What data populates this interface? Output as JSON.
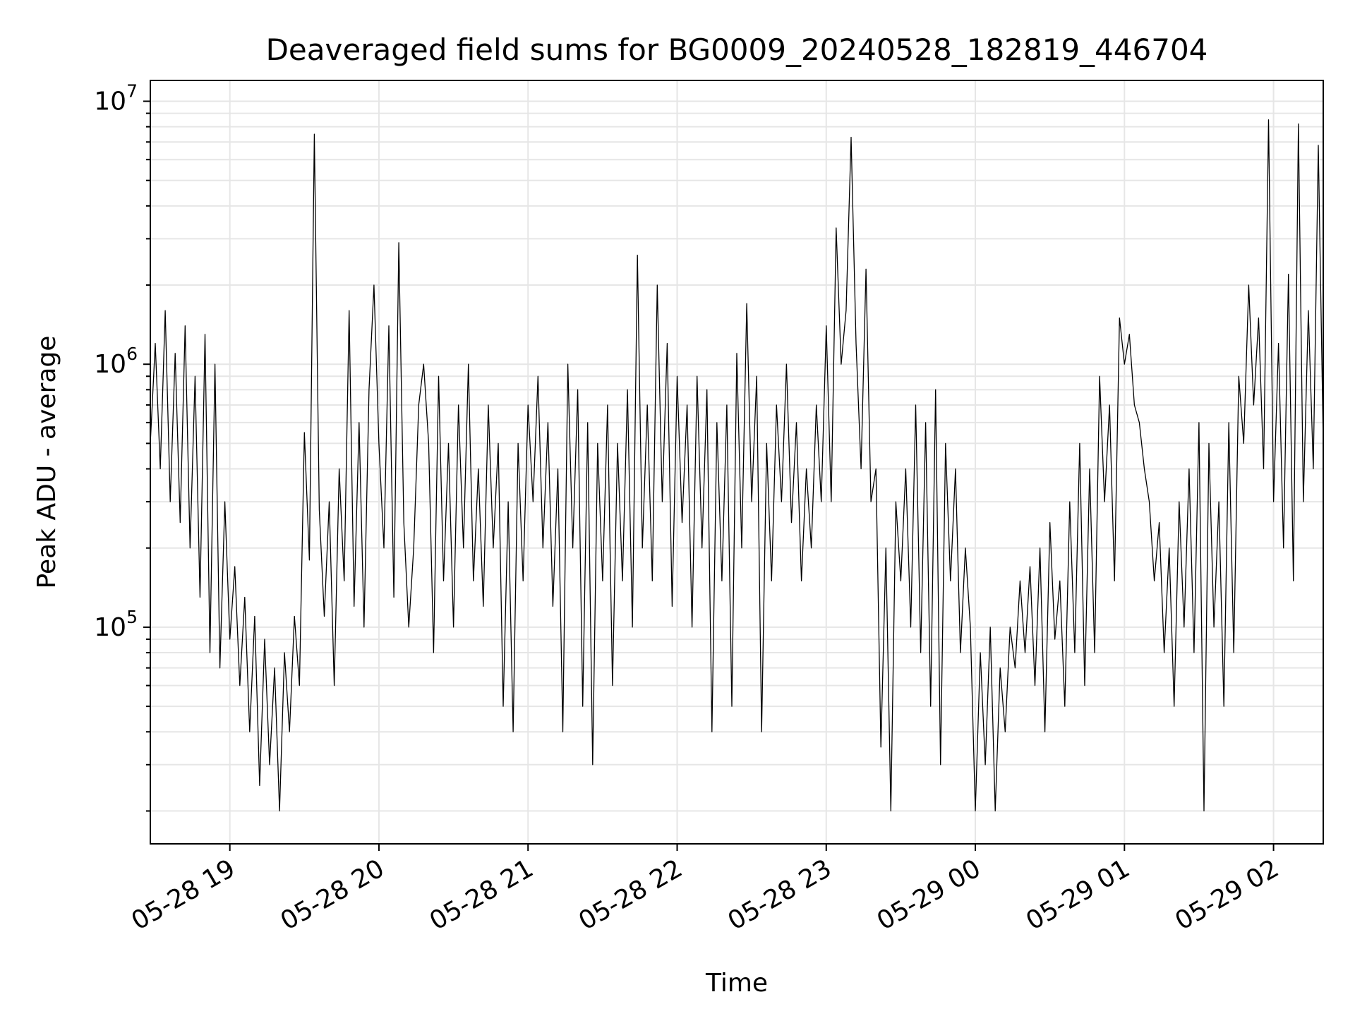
{
  "chart_data": {
    "type": "line",
    "title": "Deaveraged field sums for BG0009_20240528_182819_446704",
    "xlabel": "Time",
    "ylabel": "Peak ADU - average",
    "y_scale": "log",
    "ylim": [
      15000,
      12000000
    ],
    "xlim": [
      "2024-05-28 18:28",
      "2024-05-29 02:20"
    ],
    "x_ticks": [
      "2024-05-28 19:00",
      "2024-05-28 20:00",
      "2024-05-28 21:00",
      "2024-05-28 22:00",
      "2024-05-28 23:00",
      "2024-05-29 00:00",
      "2024-05-29 01:00",
      "2024-05-29 02:00"
    ],
    "x_tick_labels": [
      "05-28 19",
      "05-28 20",
      "05-28 21",
      "05-28 22",
      "05-28 23",
      "05-29 00",
      "05-29 01",
      "05-29 02"
    ],
    "y_ticks": [
      {
        "base": "10",
        "exp": "5",
        "value": 100000
      },
      {
        "base": "10",
        "exp": "6",
        "value": 1000000
      },
      {
        "base": "10",
        "exp": "7",
        "value": 10000000
      }
    ],
    "grid": true,
    "line_color": "#000000",
    "grid_color": "#e6e6e6",
    "series": [
      {
        "x": [
          "2024-05-28 18:28",
          "2024-05-28 18:30",
          "2024-05-28 18:32",
          "2024-05-28 18:34",
          "2024-05-28 18:36",
          "2024-05-28 18:38",
          "2024-05-28 18:40",
          "2024-05-28 18:42",
          "2024-05-28 18:44",
          "2024-05-28 18:46",
          "2024-05-28 18:48",
          "2024-05-28 18:50",
          "2024-05-28 18:52",
          "2024-05-28 18:54",
          "2024-05-28 18:56",
          "2024-05-28 18:58",
          "2024-05-28 19:00",
          "2024-05-28 19:02",
          "2024-05-28 19:04",
          "2024-05-28 19:06",
          "2024-05-28 19:08",
          "2024-05-28 19:10",
          "2024-05-28 19:12",
          "2024-05-28 19:14",
          "2024-05-28 19:16",
          "2024-05-28 19:18",
          "2024-05-28 19:20",
          "2024-05-28 19:22",
          "2024-05-28 19:24",
          "2024-05-28 19:26",
          "2024-05-28 19:28",
          "2024-05-28 19:30",
          "2024-05-28 19:32",
          "2024-05-28 19:34",
          "2024-05-28 19:36",
          "2024-05-28 19:38",
          "2024-05-28 19:40",
          "2024-05-28 19:42",
          "2024-05-28 19:44",
          "2024-05-28 19:46",
          "2024-05-28 19:48",
          "2024-05-28 19:50",
          "2024-05-28 19:52",
          "2024-05-28 19:54",
          "2024-05-28 19:56",
          "2024-05-28 19:58",
          "2024-05-28 20:00",
          "2024-05-28 20:02",
          "2024-05-28 20:04",
          "2024-05-28 20:06",
          "2024-05-28 20:08",
          "2024-05-28 20:10",
          "2024-05-28 20:12",
          "2024-05-28 20:14",
          "2024-05-28 20:16",
          "2024-05-28 20:18",
          "2024-05-28 20:20",
          "2024-05-28 20:22",
          "2024-05-28 20:24",
          "2024-05-28 20:26",
          "2024-05-28 20:28",
          "2024-05-28 20:30",
          "2024-05-28 20:32",
          "2024-05-28 20:34",
          "2024-05-28 20:36",
          "2024-05-28 20:38",
          "2024-05-28 20:40",
          "2024-05-28 20:42",
          "2024-05-28 20:44",
          "2024-05-28 20:46",
          "2024-05-28 20:48",
          "2024-05-28 20:50",
          "2024-05-28 20:52",
          "2024-05-28 20:54",
          "2024-05-28 20:56",
          "2024-05-28 20:58",
          "2024-05-28 21:00",
          "2024-05-28 21:02",
          "2024-05-28 21:04",
          "2024-05-28 21:06",
          "2024-05-28 21:08",
          "2024-05-28 21:10",
          "2024-05-28 21:12",
          "2024-05-28 21:14",
          "2024-05-28 21:16",
          "2024-05-28 21:18",
          "2024-05-28 21:20",
          "2024-05-28 21:22",
          "2024-05-28 21:24",
          "2024-05-28 21:26",
          "2024-05-28 21:28",
          "2024-05-28 21:30",
          "2024-05-28 21:32",
          "2024-05-28 21:34",
          "2024-05-28 21:36",
          "2024-05-28 21:38",
          "2024-05-28 21:40",
          "2024-05-28 21:42",
          "2024-05-28 21:44",
          "2024-05-28 21:46",
          "2024-05-28 21:48",
          "2024-05-28 21:50",
          "2024-05-28 21:52",
          "2024-05-28 21:54",
          "2024-05-28 21:56",
          "2024-05-28 21:58",
          "2024-05-28 22:00",
          "2024-05-28 22:02",
          "2024-05-28 22:04",
          "2024-05-28 22:06",
          "2024-05-28 22:08",
          "2024-05-28 22:10",
          "2024-05-28 22:12",
          "2024-05-28 22:14",
          "2024-05-28 22:16",
          "2024-05-28 22:18",
          "2024-05-28 22:20",
          "2024-05-28 22:22",
          "2024-05-28 22:24",
          "2024-05-28 22:26",
          "2024-05-28 22:28",
          "2024-05-28 22:30",
          "2024-05-28 22:32",
          "2024-05-28 22:34",
          "2024-05-28 22:36",
          "2024-05-28 22:38",
          "2024-05-28 22:40",
          "2024-05-28 22:42",
          "2024-05-28 22:44",
          "2024-05-28 22:46",
          "2024-05-28 22:48",
          "2024-05-28 22:50",
          "2024-05-28 22:52",
          "2024-05-28 22:54",
          "2024-05-28 22:56",
          "2024-05-28 22:58",
          "2024-05-28 23:00",
          "2024-05-28 23:02",
          "2024-05-28 23:04",
          "2024-05-28 23:06",
          "2024-05-28 23:08",
          "2024-05-28 23:10",
          "2024-05-28 23:12",
          "2024-05-28 23:14",
          "2024-05-28 23:16",
          "2024-05-28 23:18",
          "2024-05-28 23:20",
          "2024-05-28 23:22",
          "2024-05-28 23:24",
          "2024-05-28 23:26",
          "2024-05-28 23:28",
          "2024-05-28 23:30",
          "2024-05-28 23:32",
          "2024-05-28 23:34",
          "2024-05-28 23:36",
          "2024-05-28 23:38",
          "2024-05-28 23:40",
          "2024-05-28 23:42",
          "2024-05-28 23:44",
          "2024-05-28 23:46",
          "2024-05-28 23:48",
          "2024-05-28 23:50",
          "2024-05-28 23:52",
          "2024-05-28 23:54",
          "2024-05-28 23:56",
          "2024-05-28 23:58",
          "2024-05-29 00:00",
          "2024-05-29 00:02",
          "2024-05-29 00:04",
          "2024-05-29 00:06",
          "2024-05-29 00:08",
          "2024-05-29 00:10",
          "2024-05-29 00:12",
          "2024-05-29 00:14",
          "2024-05-29 00:16",
          "2024-05-29 00:18",
          "2024-05-29 00:20",
          "2024-05-29 00:22",
          "2024-05-29 00:24",
          "2024-05-29 00:26",
          "2024-05-29 00:28",
          "2024-05-29 00:30",
          "2024-05-29 00:32",
          "2024-05-29 00:34",
          "2024-05-29 00:36",
          "2024-05-29 00:38",
          "2024-05-29 00:40",
          "2024-05-29 00:42",
          "2024-05-29 00:44",
          "2024-05-29 00:46",
          "2024-05-29 00:48",
          "2024-05-29 00:50",
          "2024-05-29 00:52",
          "2024-05-29 00:54",
          "2024-05-29 00:56",
          "2024-05-29 00:58",
          "2024-05-29 01:00",
          "2024-05-29 01:02",
          "2024-05-29 01:04",
          "2024-05-29 01:06",
          "2024-05-29 01:08",
          "2024-05-29 01:10",
          "2024-05-29 01:12",
          "2024-05-29 01:14",
          "2024-05-29 01:16",
          "2024-05-29 01:18",
          "2024-05-29 01:20",
          "2024-05-29 01:22",
          "2024-05-29 01:24",
          "2024-05-29 01:26",
          "2024-05-29 01:28",
          "2024-05-29 01:30",
          "2024-05-29 01:32",
          "2024-05-29 01:34",
          "2024-05-29 01:36",
          "2024-05-29 01:38",
          "2024-05-29 01:40",
          "2024-05-29 01:42",
          "2024-05-29 01:44",
          "2024-05-29 01:46",
          "2024-05-29 01:48",
          "2024-05-29 01:50",
          "2024-05-29 01:52",
          "2024-05-29 01:54",
          "2024-05-29 01:56",
          "2024-05-29 01:58",
          "2024-05-29 02:00",
          "2024-05-29 02:02",
          "2024-05-29 02:04",
          "2024-05-29 02:06",
          "2024-05-29 02:08",
          "2024-05-29 02:10",
          "2024-05-29 02:12",
          "2024-05-29 02:14",
          "2024-05-29 02:16",
          "2024-05-29 02:18",
          "2024-05-29 02:20"
        ],
        "y": [
          500000,
          1200000,
          400000,
          1600000,
          300000,
          1100000,
          250000,
          1400000,
          200000,
          900000,
          130000,
          1300000,
          80000,
          1000000,
          70000,
          300000,
          90000,
          170000,
          60000,
          130000,
          40000,
          110000,
          25000,
          90000,
          30000,
          70000,
          20000,
          80000,
          40000,
          110000,
          60000,
          550000,
          180000,
          7500000,
          280000,
          110000,
          300000,
          60000,
          400000,
          150000,
          1600000,
          120000,
          600000,
          100000,
          800000,
          2000000,
          500000,
          200000,
          1400000,
          130000,
          2900000,
          250000,
          100000,
          200000,
          700000,
          1000000,
          500000,
          80000,
          900000,
          150000,
          500000,
          100000,
          700000,
          200000,
          1000000,
          150000,
          400000,
          120000,
          700000,
          200000,
          500000,
          50000,
          300000,
          40000,
          500000,
          150000,
          700000,
          300000,
          900000,
          200000,
          600000,
          120000,
          400000,
          40000,
          1000000,
          200000,
          800000,
          50000,
          600000,
          30000,
          500000,
          150000,
          700000,
          60000,
          500000,
          150000,
          800000,
          100000,
          2600000,
          200000,
          700000,
          150000,
          2000000,
          300000,
          1200000,
          120000,
          900000,
          250000,
          700000,
          100000,
          900000,
          200000,
          800000,
          40000,
          600000,
          150000,
          700000,
          50000,
          1100000,
          200000,
          1700000,
          300000,
          900000,
          40000,
          500000,
          150000,
          700000,
          300000,
          1000000,
          250000,
          600000,
          150000,
          400000,
          200000,
          700000,
          300000,
          1400000,
          300000,
          3300000,
          1000000,
          1600000,
          7300000,
          1200000,
          400000,
          2300000,
          300000,
          400000,
          35000,
          200000,
          20000,
          300000,
          150000,
          400000,
          100000,
          700000,
          80000,
          600000,
          50000,
          800000,
          30000,
          500000,
          150000,
          400000,
          80000,
          200000,
          100000,
          20000,
          80000,
          30000,
          100000,
          20000,
          70000,
          40000,
          100000,
          70000,
          150000,
          80000,
          170000,
          60000,
          200000,
          40000,
          250000,
          90000,
          150000,
          50000,
          300000,
          80000,
          500000,
          60000,
          400000,
          80000,
          900000,
          300000,
          700000,
          150000,
          1500000,
          1000000,
          1300000,
          700000,
          600000,
          400000,
          300000,
          150000,
          250000,
          80000,
          200000,
          50000,
          300000,
          100000,
          400000,
          80000,
          600000,
          20000,
          500000,
          100000,
          300000,
          50000,
          600000,
          80000,
          900000,
          500000,
          2000000,
          700000,
          1500000,
          400000,
          8500000,
          300000,
          1200000,
          200000,
          2200000,
          150000,
          8200000,
          300000,
          1600000,
          400000,
          6800000,
          500000
        ]
      }
    ]
  }
}
